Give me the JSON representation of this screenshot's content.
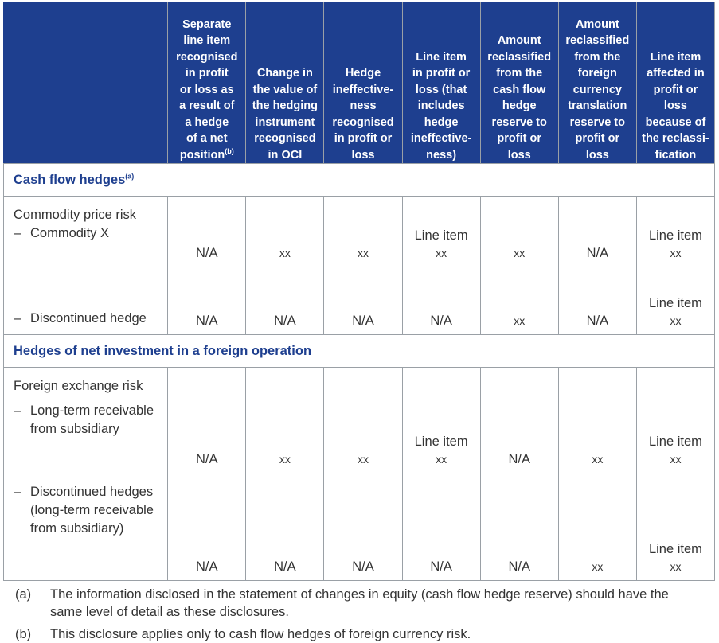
{
  "header": {
    "columns": [
      "",
      "Separate\nline item\nrecognised\nin profit\nor loss as\na result of\na hedge\nof a net\nposition",
      "Change in\nthe value of\nthe hedging\ninstrument\nrecognised\nin OCI",
      "Hedge\nineffective-\nness\nrecognised\nin profit or\nloss",
      "Line item\nin profit or\nloss (that\nincludes\nhedge\nineffective-\nness)",
      "Amount\nreclassified\nfrom the\ncash flow\nhedge\nreserve to\nprofit or\nloss",
      "Amount\nreclassified\nfrom the\nforeign\ncurrency\ntranslation\nreserve to\nprofit or\nloss",
      "Line item\naffected in\nprofit or\nloss\nbecause of\nthe reclassi-\nfication"
    ],
    "col1_note": "(b)"
  },
  "sections": [
    {
      "title": "Cash flow hedges",
      "note": "(a)",
      "risk": "Commodity price risk",
      "rows": [
        {
          "dash": "–",
          "label": "Commodity X",
          "values": [
            "N/A",
            "xx",
            "xx",
            "Line item",
            "xx",
            "N/A",
            "Line item"
          ],
          "sub_values": [
            "",
            "",
            "",
            "xx",
            "",
            "",
            "xx"
          ]
        },
        {
          "dash": "–",
          "label": "Discontinued hedge",
          "values": [
            "N/A",
            "N/A",
            "N/A",
            "N/A",
            "xx",
            "N/A",
            "Line item"
          ],
          "sub_values": [
            "",
            "",
            "",
            "",
            "",
            "",
            "xx"
          ]
        }
      ]
    },
    {
      "title": "Hedges of net investment in a foreign operation",
      "risk": "Foreign exchange risk",
      "rows": [
        {
          "dash": "–",
          "label": "Long-term receivable from subsidiary",
          "values": [
            "N/A",
            "xx",
            "xx",
            "Line item",
            "N/A",
            "xx",
            "Line item"
          ],
          "sub_values": [
            "",
            "",
            "",
            "xx",
            "",
            "",
            "xx"
          ]
        },
        {
          "dash": "–",
          "label": "Discontinued hedges (long-term receivable from subsidiary)",
          "values": [
            "N/A",
            "N/A",
            "N/A",
            "N/A",
            "N/A",
            "xx",
            "Line item"
          ],
          "sub_values": [
            "",
            "",
            "",
            "",
            "",
            "",
            "xx"
          ]
        }
      ]
    }
  ],
  "footnotes": [
    {
      "mark": "(a)",
      "text": "The information disclosed in the statement of changes in equity (cash flow hedge reserve) should have the same level of detail as these disclosures."
    },
    {
      "mark": "(b)",
      "text": "This disclosure applies only to cash flow hedges of foreign currency risk."
    }
  ]
}
